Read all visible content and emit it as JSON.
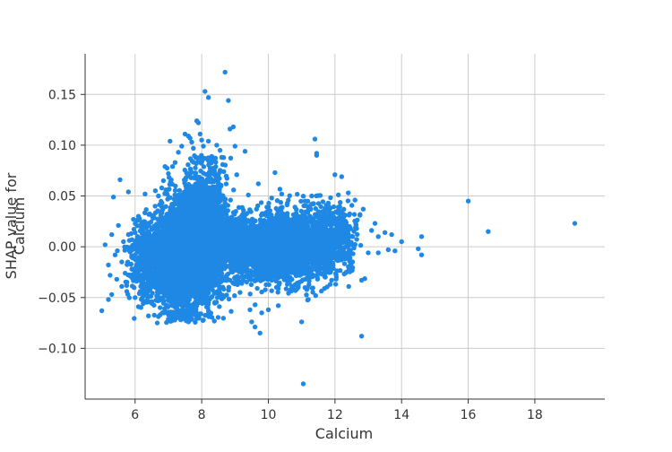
{
  "chart_data": {
    "type": "scatter",
    "title": "",
    "xlabel": "Calcium",
    "ylabel_lines": [
      "SHAP value for",
      "Calcium"
    ],
    "xlim": [
      4.5,
      20.1
    ],
    "ylim": [
      -0.15,
      0.19
    ],
    "xticks": [
      {
        "value": 6,
        "label": "6"
      },
      {
        "value": 8,
        "label": "8"
      },
      {
        "value": 10,
        "label": "10"
      },
      {
        "value": 12,
        "label": "12"
      },
      {
        "value": 14,
        "label": "14"
      },
      {
        "value": 16,
        "label": "16"
      },
      {
        "value": 18,
        "label": "18"
      }
    ],
    "yticks": [
      {
        "value": -0.1,
        "label": "−0.10"
      },
      {
        "value": -0.05,
        "label": "−0.05"
      },
      {
        "value": 0.0,
        "label": "0.00"
      },
      {
        "value": 0.05,
        "label": "0.05"
      },
      {
        "value": 0.1,
        "label": "0.10"
      },
      {
        "value": 0.15,
        "label": "0.15"
      }
    ],
    "grid": true,
    "point_color": "#1f88e5",
    "grid_color": "#cccccc",
    "axis_color": "#333333",
    "points": [
      [
        5.0,
        -0.063
      ],
      [
        5.1,
        0.002
      ],
      [
        5.2,
        -0.052
      ],
      [
        5.2,
        -0.018
      ],
      [
        5.25,
        -0.028
      ],
      [
        5.3,
        0.012
      ],
      [
        5.3,
        -0.047
      ],
      [
        5.35,
        0.049
      ],
      [
        5.4,
        -0.008
      ],
      [
        5.45,
        -0.032
      ],
      [
        5.5,
        0.021
      ],
      [
        5.55,
        0.066
      ],
      [
        5.6,
        -0.015
      ],
      [
        5.6,
        -0.039
      ],
      [
        5.65,
        0.005
      ],
      [
        5.7,
        -0.026
      ],
      [
        5.75,
        -0.044
      ],
      [
        5.8,
        0.054
      ],
      [
        5.8,
        0.012
      ],
      [
        5.85,
        -0.005
      ],
      [
        5.9,
        -0.022
      ],
      [
        5.95,
        0.027
      ],
      [
        6.0,
        -0.05
      ],
      [
        6.0,
        0.014
      ],
      [
        6.05,
        -0.034
      ],
      [
        6.1,
        0.03
      ],
      [
        6.1,
        -0.059
      ],
      [
        6.15,
        0.002
      ],
      [
        6.2,
        -0.018
      ],
      [
        6.2,
        0.024
      ],
      [
        6.25,
        -0.044
      ],
      [
        6.3,
        0.052
      ],
      [
        6.3,
        -0.008
      ],
      [
        6.35,
        -0.03
      ],
      [
        6.5,
        -0.054
      ],
      [
        6.6,
        0.04
      ],
      [
        6.7,
        0.05
      ],
      [
        6.75,
        -0.06
      ],
      [
        6.8,
        0.058
      ],
      [
        6.85,
        0.065
      ],
      [
        6.9,
        0.079
      ],
      [
        7.0,
        -0.067
      ],
      [
        7.0,
        0.072
      ],
      [
        7.05,
        0.104
      ],
      [
        7.1,
        -0.07
      ],
      [
        7.2,
        0.083
      ],
      [
        7.3,
        0.093
      ],
      [
        7.3,
        -0.066
      ],
      [
        7.4,
        0.099
      ],
      [
        7.45,
        -0.071
      ],
      [
        7.5,
        0.111
      ],
      [
        7.5,
        -0.069
      ],
      [
        7.6,
        0.109
      ],
      [
        7.6,
        -0.074
      ],
      [
        7.65,
        0.107
      ],
      [
        7.7,
        0.103
      ],
      [
        7.7,
        -0.062
      ],
      [
        7.75,
        0.097
      ],
      [
        7.8,
        -0.049
      ],
      [
        7.85,
        0.124
      ],
      [
        7.9,
        0.122
      ],
      [
        7.9,
        -0.045
      ],
      [
        7.95,
        0.111
      ],
      [
        8.0,
        0.105
      ],
      [
        8.05,
        0.099
      ],
      [
        8.1,
        0.153
      ],
      [
        8.2,
        0.147
      ],
      [
        8.2,
        0.104
      ],
      [
        8.3,
        0.089
      ],
      [
        8.35,
        -0.028
      ],
      [
        8.45,
        0.1
      ],
      [
        8.55,
        0.095
      ],
      [
        8.6,
        0.088
      ],
      [
        8.7,
        0.172
      ],
      [
        8.8,
        0.144
      ],
      [
        8.85,
        0.116
      ],
      [
        8.95,
        0.118
      ],
      [
        9.0,
        0.099
      ],
      [
        9.05,
        0.071
      ],
      [
        9.1,
        -0.033
      ],
      [
        9.15,
        -0.045
      ],
      [
        9.3,
        0.094
      ],
      [
        9.4,
        0.051
      ],
      [
        9.45,
        -0.062
      ],
      [
        9.5,
        -0.074
      ],
      [
        9.6,
        -0.079
      ],
      [
        9.7,
        0.062
      ],
      [
        9.75,
        -0.085
      ],
      [
        9.8,
        -0.065
      ],
      [
        10.0,
        -0.062
      ],
      [
        10.1,
        0.048
      ],
      [
        10.2,
        0.073
      ],
      [
        10.3,
        -0.058
      ],
      [
        10.4,
        0.052
      ],
      [
        10.6,
        0.046
      ],
      [
        10.8,
        0.039
      ],
      [
        10.9,
        -0.04
      ],
      [
        11.0,
        -0.074
      ],
      [
        11.05,
        -0.135
      ],
      [
        11.1,
        0.045
      ],
      [
        11.2,
        -0.052
      ],
      [
        11.3,
        0.042
      ],
      [
        11.4,
        0.106
      ],
      [
        11.45,
        0.092
      ],
      [
        11.45,
        0.09
      ],
      [
        11.5,
        0.032
      ],
      [
        11.7,
        -0.021
      ],
      [
        11.8,
        0.043
      ],
      [
        11.9,
        -0.033
      ],
      [
        12.0,
        0.071
      ],
      [
        12.1,
        0.039
      ],
      [
        12.2,
        0.069
      ],
      [
        12.3,
        0.01
      ],
      [
        12.4,
        0.053
      ],
      [
        12.4,
        0.02
      ],
      [
        12.5,
        -0.022
      ],
      [
        12.6,
        0.046
      ],
      [
        12.65,
        0.018
      ],
      [
        12.75,
        0.031
      ],
      [
        12.8,
        -0.088
      ],
      [
        12.8,
        -0.033
      ],
      [
        12.85,
        0.037
      ],
      [
        13.0,
        -0.006
      ],
      [
        13.1,
        0.016
      ],
      [
        13.2,
        0.023
      ],
      [
        13.3,
        0.01
      ],
      [
        13.3,
        -0.006
      ],
      [
        13.5,
        0.014
      ],
      [
        13.6,
        -0.003
      ],
      [
        13.7,
        0.012
      ],
      [
        13.8,
        -0.004
      ],
      [
        14.0,
        0.005
      ],
      [
        14.5,
        -0.002
      ],
      [
        14.6,
        0.01
      ],
      [
        14.6,
        -0.008
      ],
      [
        16.0,
        0.045
      ],
      [
        16.6,
        0.015
      ],
      [
        19.2,
        0.023
      ]
    ],
    "clusters": [
      {
        "cx": 7.4,
        "cy": -0.008,
        "sx": 0.42,
        "sy": 0.027,
        "n": 2600,
        "seed": 11
      },
      {
        "cx": 8.1,
        "cy": 0.01,
        "sx": 0.3,
        "sy": 0.03,
        "n": 2300,
        "seed": 23
      },
      {
        "cx": 6.4,
        "cy": -0.012,
        "sx": 0.3,
        "sy": 0.02,
        "n": 450,
        "seed": 37
      },
      {
        "cx": 10.4,
        "cy": 0.0,
        "sx": 0.72,
        "sy": 0.016,
        "n": 2600,
        "seed": 41
      },
      {
        "cx": 9.0,
        "cy": 0.003,
        "sx": 0.35,
        "sy": 0.013,
        "n": 600,
        "seed": 53
      },
      {
        "cx": 11.7,
        "cy": 0.005,
        "sx": 0.35,
        "sy": 0.017,
        "n": 450,
        "seed": 67
      },
      {
        "cx": 12.3,
        "cy": 0.012,
        "sx": 0.22,
        "sy": 0.016,
        "n": 80,
        "seed": 79
      }
    ]
  }
}
